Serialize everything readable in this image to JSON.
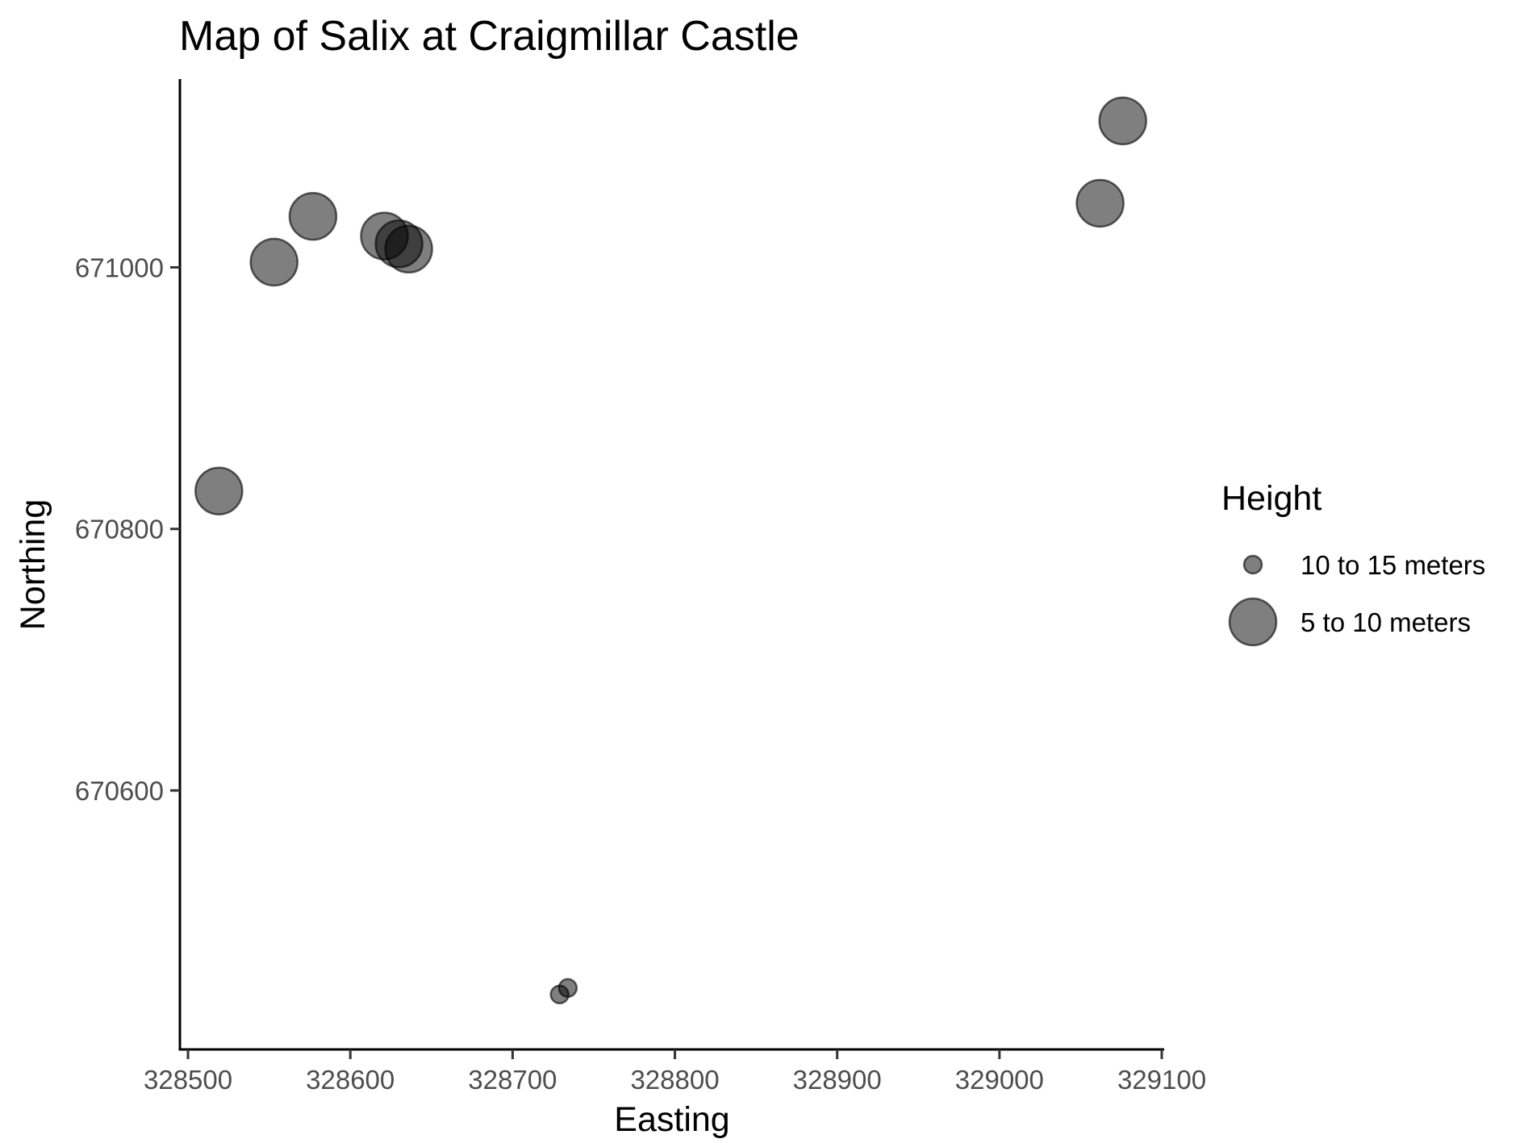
{
  "chart_data": {
    "type": "scatter",
    "title": "Map of Salix at Craigmillar Castle",
    "xlabel": "Easting",
    "ylabel": "Northing",
    "xlim": [
      328495,
      329100
    ],
    "ylim": [
      670402,
      671144
    ],
    "x_ticks": [
      328500,
      328600,
      328700,
      328800,
      328900,
      329000,
      329100
    ],
    "x_tick_labels": [
      "328500",
      "328600",
      "328700",
      "328800",
      "328900",
      "329000",
      "329100"
    ],
    "y_ticks": [
      670600,
      670800,
      671000
    ],
    "y_tick_labels": [
      "670600",
      "670800",
      "671000"
    ],
    "grid": false,
    "legend": {
      "title": "Height",
      "placement": "right",
      "entries": [
        {
          "label": "10 to 15 meters",
          "size": "small"
        },
        {
          "label": "5 to 10 meters",
          "size": "large"
        }
      ]
    },
    "point_color": "#000000",
    "point_opacity": 0.5,
    "series": [
      {
        "group": "10 to 15 meters",
        "size": "small",
        "points": [
          {
            "x": 328729,
            "y": 670444
          },
          {
            "x": 328734,
            "y": 670449
          }
        ]
      },
      {
        "group": "5 to 10 meters",
        "size": "large",
        "points": [
          {
            "x": 328519,
            "y": 670829
          },
          {
            "x": 328553,
            "y": 671004
          },
          {
            "x": 328577,
            "y": 671039
          },
          {
            "x": 328621,
            "y": 671024
          },
          {
            "x": 328630,
            "y": 671018
          },
          {
            "x": 328636,
            "y": 671014
          },
          {
            "x": 329062,
            "y": 671049
          },
          {
            "x": 329076,
            "y": 671112
          }
        ]
      }
    ]
  }
}
